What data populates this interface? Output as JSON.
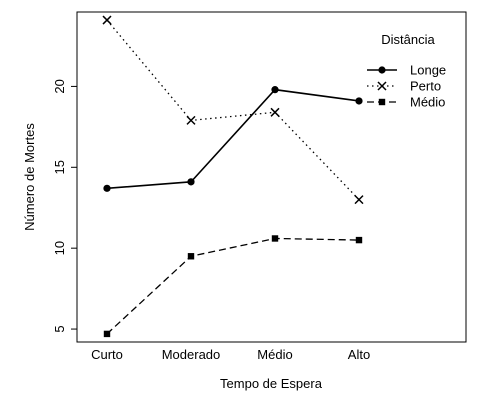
{
  "chart_data": {
    "type": "line",
    "title": "",
    "xlabel": "Tempo de Espera",
    "ylabel": "Número de Mortes",
    "categories": [
      "Curto",
      "Moderado",
      "Médio",
      "Alto"
    ],
    "yticks": [
      5,
      10,
      15,
      20
    ],
    "ylim": [
      4.2,
      24.6
    ],
    "grid": false,
    "legend": {
      "title": "Distância",
      "placement": "top-right"
    },
    "series": [
      {
        "name": "Longe",
        "values": [
          13.7,
          14.1,
          19.8,
          19.1
        ],
        "marker": "circle",
        "linestyle": "solid"
      },
      {
        "name": "Perto",
        "values": [
          24.1,
          17.9,
          18.4,
          13.0
        ],
        "marker": "x",
        "linestyle": "dotted"
      },
      {
        "name": "Médio",
        "values": [
          4.7,
          9.5,
          10.6,
          10.5
        ],
        "marker": "square",
        "linestyle": "dashed"
      }
    ]
  }
}
